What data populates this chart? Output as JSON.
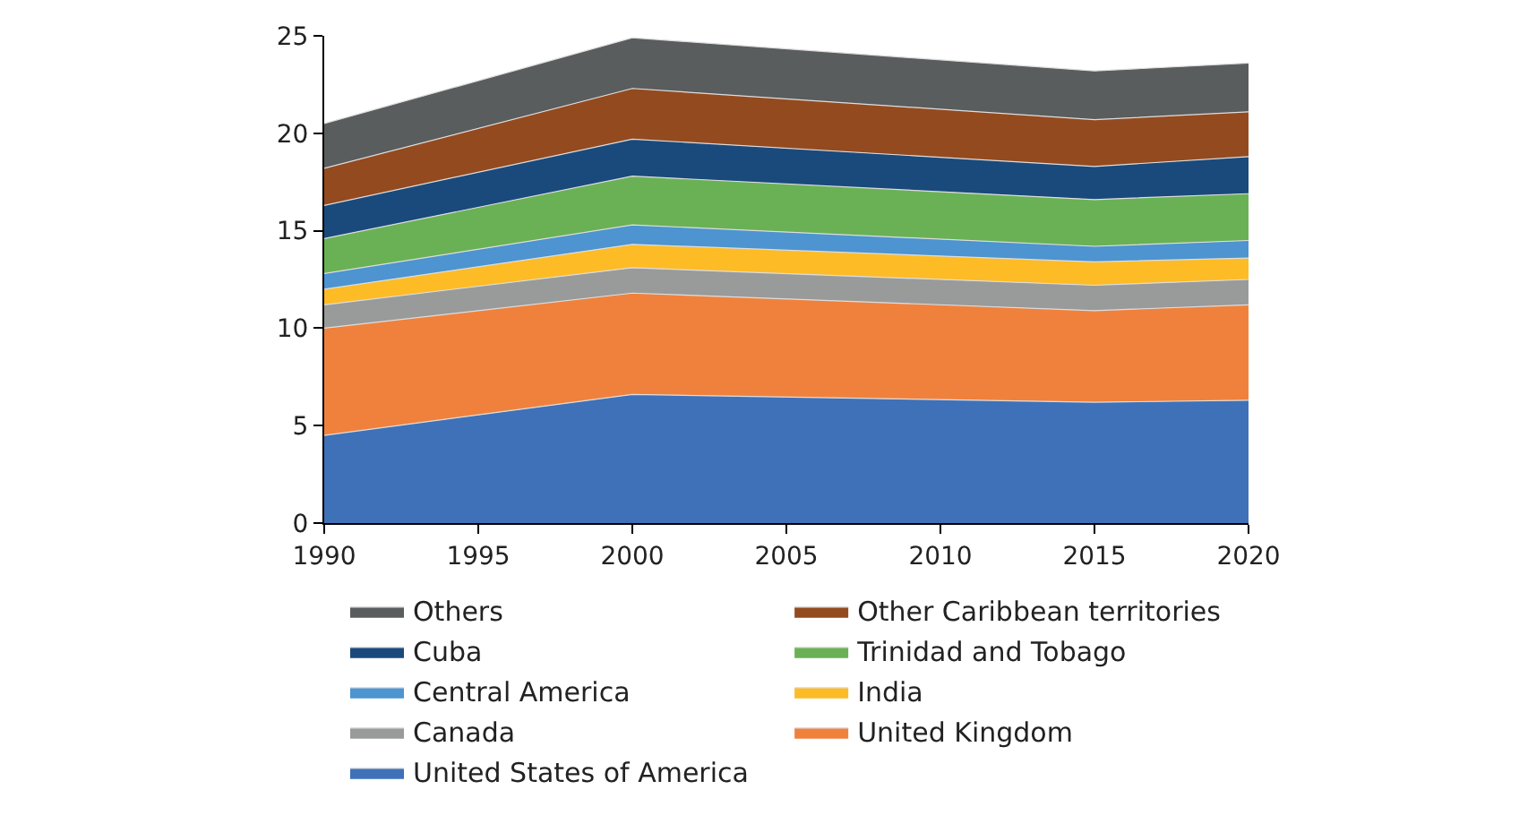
{
  "chart_data": {
    "type": "area",
    "stacked": true,
    "x": [
      1990,
      2000,
      2015,
      2020
    ],
    "xlim": [
      1990,
      2020
    ],
    "xticks": [
      1990,
      1995,
      2000,
      2005,
      2010,
      2015,
      2020
    ],
    "ylim": [
      0,
      25
    ],
    "yticks": [
      0,
      5,
      10,
      15,
      20,
      25
    ],
    "grid": false,
    "legend": "bottom",
    "series": [
      {
        "name": "United States of America",
        "color": "#3f71b8",
        "values": [
          4.5,
          6.6,
          6.2,
          6.3
        ]
      },
      {
        "name": "United Kingdom",
        "color": "#f0813c",
        "values": [
          5.5,
          5.2,
          4.7,
          4.9
        ]
      },
      {
        "name": "Canada",
        "color": "#999b9b",
        "values": [
          1.2,
          1.3,
          1.3,
          1.3
        ]
      },
      {
        "name": "India",
        "color": "#fdbb26",
        "values": [
          0.8,
          1.2,
          1.2,
          1.1
        ]
      },
      {
        "name": "Central America",
        "color": "#4d94d0",
        "values": [
          0.8,
          1.0,
          0.8,
          0.9
        ]
      },
      {
        "name": "Trinidad and Tobago",
        "color": "#6ab155",
        "values": [
          1.8,
          2.5,
          2.4,
          2.4
        ]
      },
      {
        "name": "Cuba",
        "color": "#1a4a7c",
        "values": [
          1.7,
          1.9,
          1.7,
          1.9
        ]
      },
      {
        "name": "Other Caribbean territories",
        "color": "#944a1f",
        "values": [
          1.9,
          2.6,
          2.4,
          2.3
        ]
      },
      {
        "name": "Others",
        "color": "#5a5d5e",
        "values": [
          2.3,
          2.6,
          2.5,
          2.5
        ]
      }
    ]
  }
}
